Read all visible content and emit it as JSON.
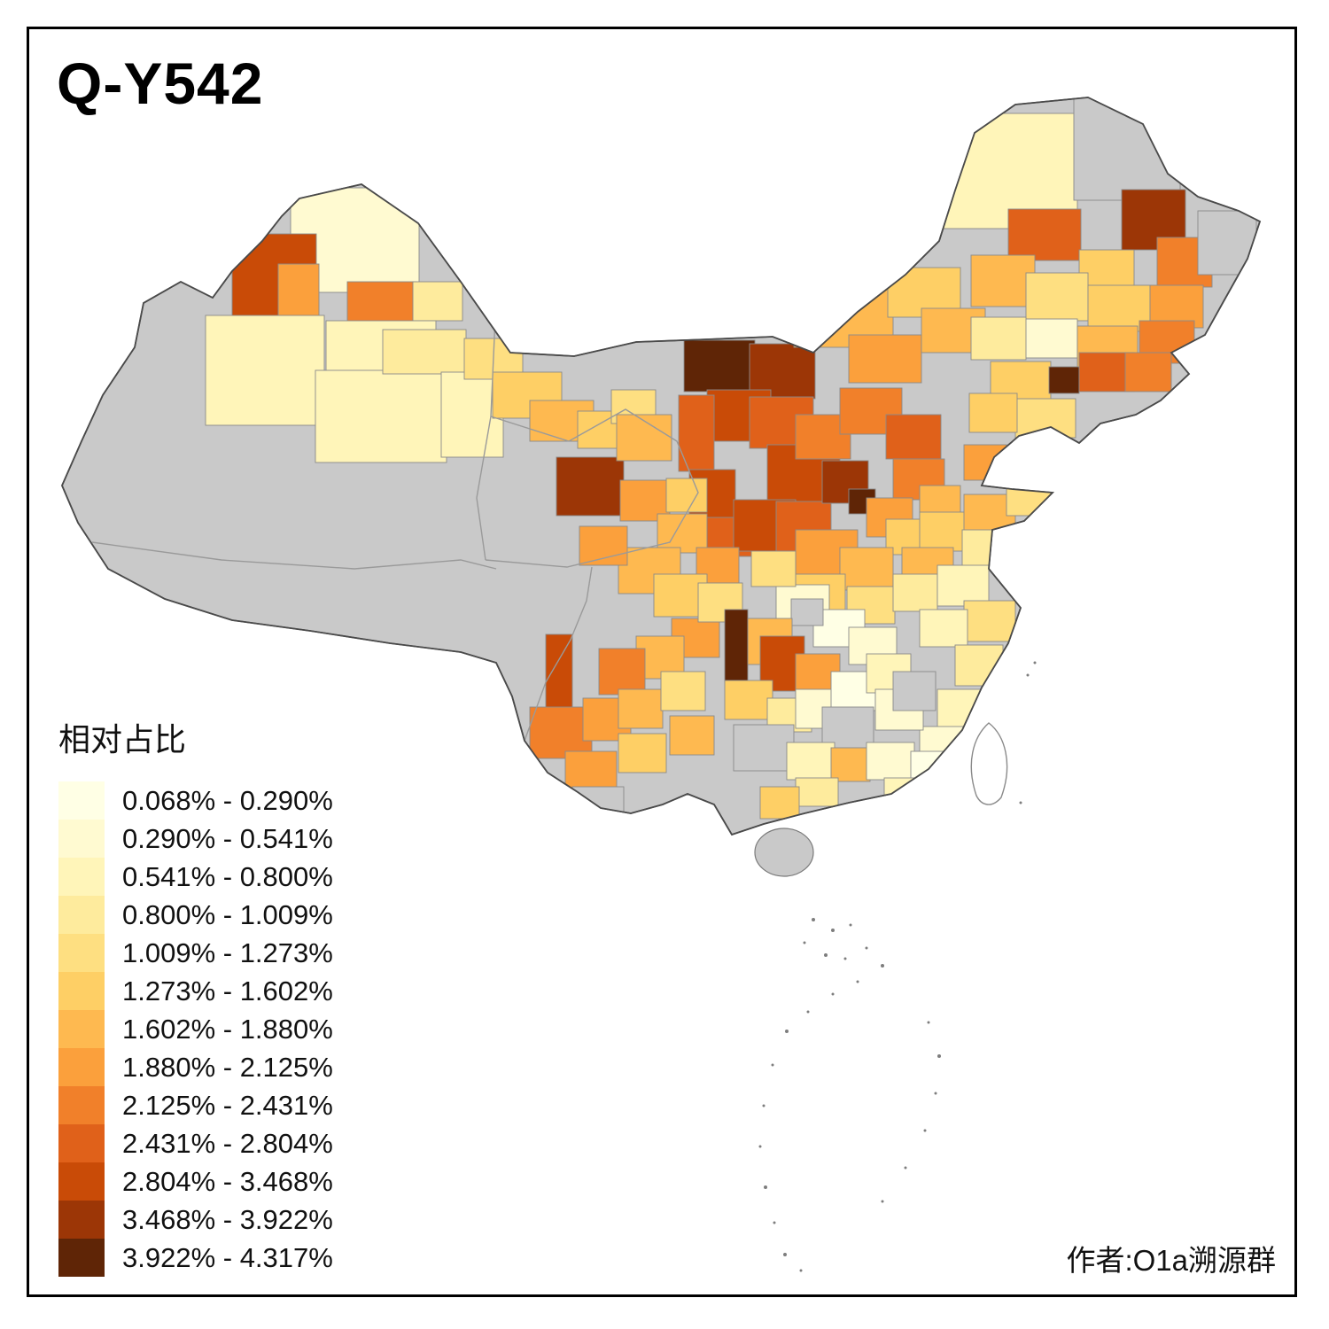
{
  "title": "Q-Y542",
  "author_credit": "作者:O1a溯源群",
  "legend": {
    "title": "相对占比",
    "items": [
      {
        "label": "0.068% - 0.290%",
        "color": "#FFFFE5"
      },
      {
        "label": "0.290% - 0.541%",
        "color": "#FFFAD1"
      },
      {
        "label": "0.541% - 0.800%",
        "color": "#FFF5B9"
      },
      {
        "label": "0.800% - 1.009%",
        "color": "#FEEB9D"
      },
      {
        "label": "1.009% - 1.273%",
        "color": "#FEDF81"
      },
      {
        "label": "1.273% - 1.602%",
        "color": "#FECF65"
      },
      {
        "label": "1.602% - 1.880%",
        "color": "#FEB950"
      },
      {
        "label": "1.880% - 2.125%",
        "color": "#FBA03C"
      },
      {
        "label": "2.125% - 2.431%",
        "color": "#F1802A"
      },
      {
        "label": "2.431% - 2.804%",
        "color": "#E0611A"
      },
      {
        "label": "2.804% - 3.468%",
        "color": "#C94B07"
      },
      {
        "label": "3.468% - 3.922%",
        "color": "#9C3606"
      },
      {
        "label": "3.922% - 4.317%",
        "color": "#5F2506"
      }
    ]
  },
  "map": {
    "no_data_color": "#C9C9C9",
    "national_border_color": "#4A4A4A",
    "region_border_color": "#8A8A8A"
  }
}
